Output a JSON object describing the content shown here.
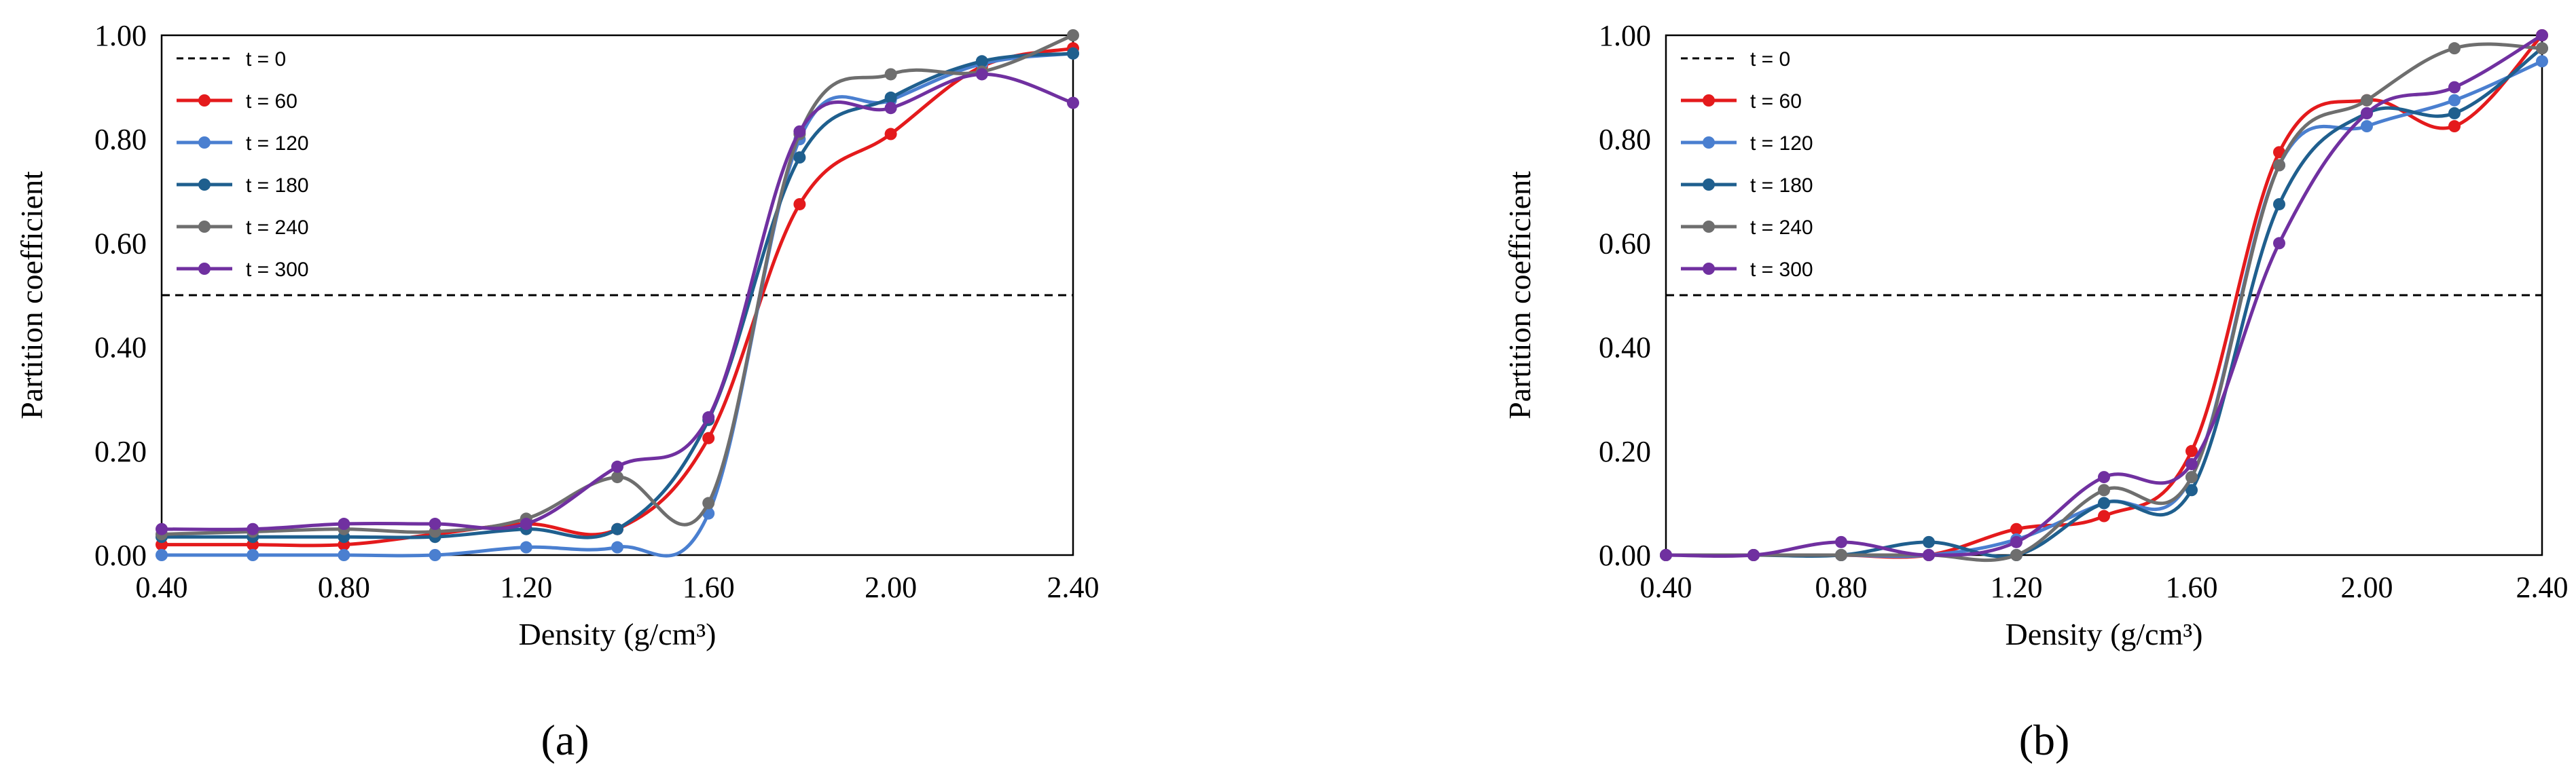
{
  "colors": {
    "t0": "#000000",
    "t60": "#e41a1c",
    "t120": "#4a7fd0",
    "t180": "#1f5f8e",
    "t240": "#6e6e6e",
    "t300": "#7030a0"
  },
  "chart_data": [
    {
      "type": "line",
      "panel_label": "(a)",
      "xlabel": "Density (g/cm³)",
      "ylabel": "Partition coefficient",
      "xlim": [
        0.4,
        2.4
      ],
      "ylim": [
        0,
        1.0
      ],
      "x_ticks": [
        "0.40",
        "0.80",
        "1.20",
        "1.60",
        "2.00",
        "2.40"
      ],
      "y_ticks": [
        "0.00",
        "0.20",
        "0.40",
        "0.60",
        "0.80",
        "1.00"
      ],
      "legend_position": "top-left inside",
      "x": [
        0.4,
        0.6,
        0.8,
        1.0,
        1.2,
        1.4,
        1.6,
        1.8,
        2.0,
        2.2,
        2.4
      ],
      "series": [
        {
          "name": "t = 0",
          "style": "dashed",
          "color_key": "t0",
          "values": [
            0.5,
            0.5,
            0.5,
            0.5,
            0.5,
            0.5,
            0.5,
            0.5,
            0.5,
            0.5,
            0.5
          ]
        },
        {
          "name": "t = 60",
          "style": "solid",
          "color_key": "t60",
          "values": [
            0.02,
            0.02,
            0.02,
            0.04,
            0.06,
            0.05,
            0.225,
            0.675,
            0.81,
            0.94,
            0.975
          ]
        },
        {
          "name": "t = 120",
          "style": "solid",
          "color_key": "t120",
          "values": [
            0.0,
            0.0,
            0.0,
            0.0,
            0.015,
            0.015,
            0.08,
            0.8,
            0.875,
            0.945,
            0.965
          ]
        },
        {
          "name": "t = 180",
          "style": "solid",
          "color_key": "t180",
          "values": [
            0.035,
            0.035,
            0.035,
            0.035,
            0.05,
            0.05,
            0.26,
            0.765,
            0.88,
            0.95,
            0.965
          ]
        },
        {
          "name": "t = 240",
          "style": "solid",
          "color_key": "t240",
          "values": [
            0.04,
            0.045,
            0.05,
            0.045,
            0.07,
            0.15,
            0.1,
            0.81,
            0.925,
            0.93,
            1.0
          ]
        },
        {
          "name": "t = 300",
          "style": "solid",
          "color_key": "t300",
          "values": [
            0.05,
            0.05,
            0.06,
            0.06,
            0.06,
            0.17,
            0.265,
            0.815,
            0.86,
            0.925,
            0.87
          ]
        }
      ]
    },
    {
      "type": "line",
      "panel_label": "(b)",
      "xlabel": "Density (g/cm³)",
      "ylabel": "Partition coefficient",
      "xlim": [
        0.4,
        2.4
      ],
      "ylim": [
        0,
        1.0
      ],
      "x_ticks": [
        "0.40",
        "0.80",
        "1.20",
        "1.60",
        "2.00",
        "2.40"
      ],
      "y_ticks": [
        "0.00",
        "0.20",
        "0.40",
        "0.60",
        "0.80",
        "1.00"
      ],
      "legend_position": "top-left inside",
      "x": [
        0.4,
        0.6,
        0.8,
        1.0,
        1.2,
        1.4,
        1.6,
        1.8,
        2.0,
        2.2,
        2.4
      ],
      "series": [
        {
          "name": "t = 0",
          "style": "dashed",
          "color_key": "t0",
          "values": [
            0.5,
            0.5,
            0.5,
            0.5,
            0.5,
            0.5,
            0.5,
            0.5,
            0.5,
            0.5,
            0.5
          ]
        },
        {
          "name": "t = 60",
          "style": "solid",
          "color_key": "t60",
          "values": [
            0.0,
            0.0,
            0.0,
            0.0,
            0.05,
            0.075,
            0.2,
            0.775,
            0.875,
            0.825,
            1.0
          ]
        },
        {
          "name": "t = 120",
          "style": "solid",
          "color_key": "t120",
          "values": [
            0.0,
            0.0,
            0.0,
            0.0,
            0.03,
            0.1,
            0.15,
            0.75,
            0.825,
            0.875,
            0.95
          ]
        },
        {
          "name": "t = 180",
          "style": "solid",
          "color_key": "t180",
          "values": [
            0.0,
            0.0,
            0.0,
            0.025,
            0.0,
            0.1,
            0.125,
            0.675,
            0.85,
            0.85,
            0.975
          ]
        },
        {
          "name": "t = 240",
          "style": "solid",
          "color_key": "t240",
          "values": [
            0.0,
            0.0,
            0.0,
            0.0,
            0.0,
            0.125,
            0.15,
            0.75,
            0.875,
            0.975,
            0.975
          ]
        },
        {
          "name": "t = 300",
          "style": "solid",
          "color_key": "t300",
          "values": [
            0.0,
            0.0,
            0.025,
            0.0,
            0.025,
            0.15,
            0.175,
            0.6,
            0.85,
            0.9,
            1.0
          ]
        }
      ]
    }
  ]
}
